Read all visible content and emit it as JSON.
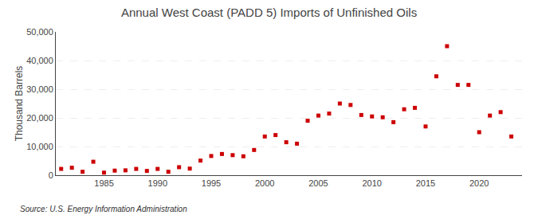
{
  "chart_data": {
    "type": "scatter",
    "title": "Annual West Coast (PADD 5) Imports of Unfinished Oils",
    "ylabel": "Thousand Barrels",
    "annotations": [
      "Source: U.S. Energy Information Administration"
    ],
    "x": [
      1981,
      1982,
      1983,
      1984,
      1985,
      1986,
      1987,
      1988,
      1989,
      1990,
      1991,
      1992,
      1993,
      1994,
      1995,
      1996,
      1997,
      1998,
      1999,
      2000,
      2001,
      2002,
      2003,
      2004,
      2005,
      2006,
      2007,
      2008,
      2009,
      2010,
      2011,
      2012,
      2013,
      2014,
      2015,
      2016,
      2017,
      2018,
      2019,
      2020,
      2021,
      2022,
      2023
    ],
    "values": [
      2200,
      2600,
      1200,
      4700,
      900,
      1600,
      1700,
      2200,
      1500,
      2200,
      1200,
      2800,
      2300,
      5100,
      6700,
      7400,
      7000,
      6600,
      8800,
      13500,
      14000,
      11500,
      11000,
      19000,
      20800,
      21500,
      25000,
      24500,
      21000,
      20500,
      20200,
      18500,
      23000,
      23500,
      17000,
      34500,
      45000,
      31500,
      31500,
      15000,
      20800,
      22000,
      13500
    ],
    "color": "#cc0000",
    "marker": "square",
    "xlim": [
      1980.5,
      2024
    ],
    "xticks": [
      1985,
      1990,
      1995,
      2000,
      2005,
      2010,
      2015,
      2020
    ],
    "ylim": [
      0,
      50000
    ],
    "yticks": [
      0,
      {
        "value": 10000,
        "label": "10,000"
      },
      {
        "value": 20000,
        "label": "20,000"
      },
      {
        "value": 30000,
        "label": "30,000"
      },
      {
        "value": 40000,
        "label": "40,000"
      },
      {
        "value": 50000,
        "label": "50,000"
      }
    ],
    "grid": "y"
  }
}
